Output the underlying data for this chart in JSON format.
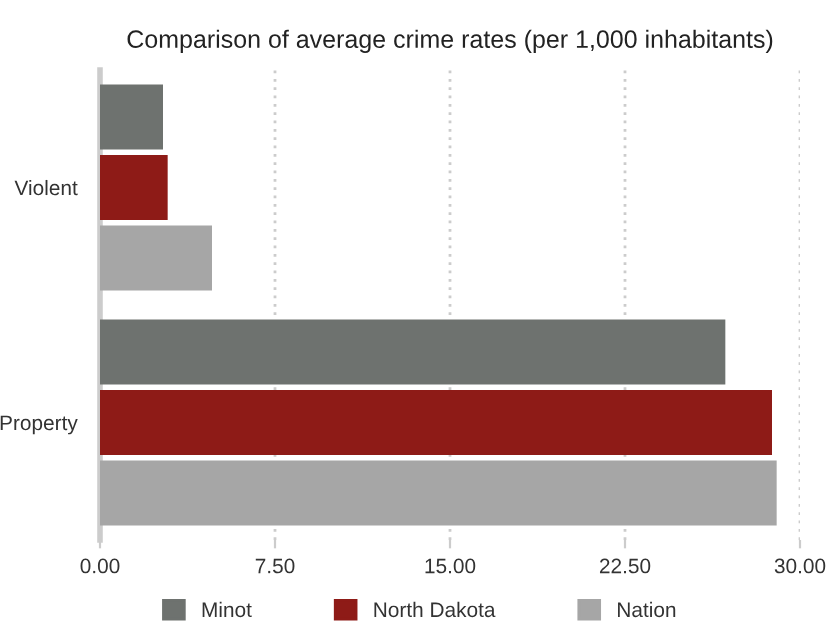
{
  "chart_data": {
    "type": "bar",
    "orientation": "horizontal",
    "title": "Comparison of average crime rates (per 1,000 inhabitants)",
    "categories": [
      "Violent",
      "Property"
    ],
    "series": [
      {
        "name": "Minot",
        "color": "#6e726f",
        "values": [
          2.7,
          26.8
        ]
      },
      {
        "name": "North Dakota",
        "color": "#8e1b17",
        "values": [
          2.9,
          28.8
        ]
      },
      {
        "name": "Nation",
        "color": "#a6a6a6",
        "values": [
          4.8,
          29.0
        ]
      }
    ],
    "xlim": [
      0,
      30
    ],
    "xticks": [
      {
        "value": 0,
        "label": "0.00"
      },
      {
        "value": 7.5,
        "label": "7.50"
      },
      {
        "value": 15,
        "label": "15.00"
      },
      {
        "value": 22.5,
        "label": "22.50"
      },
      {
        "value": 30,
        "label": "30.00"
      }
    ],
    "grid": "x",
    "legend": "bottom"
  }
}
